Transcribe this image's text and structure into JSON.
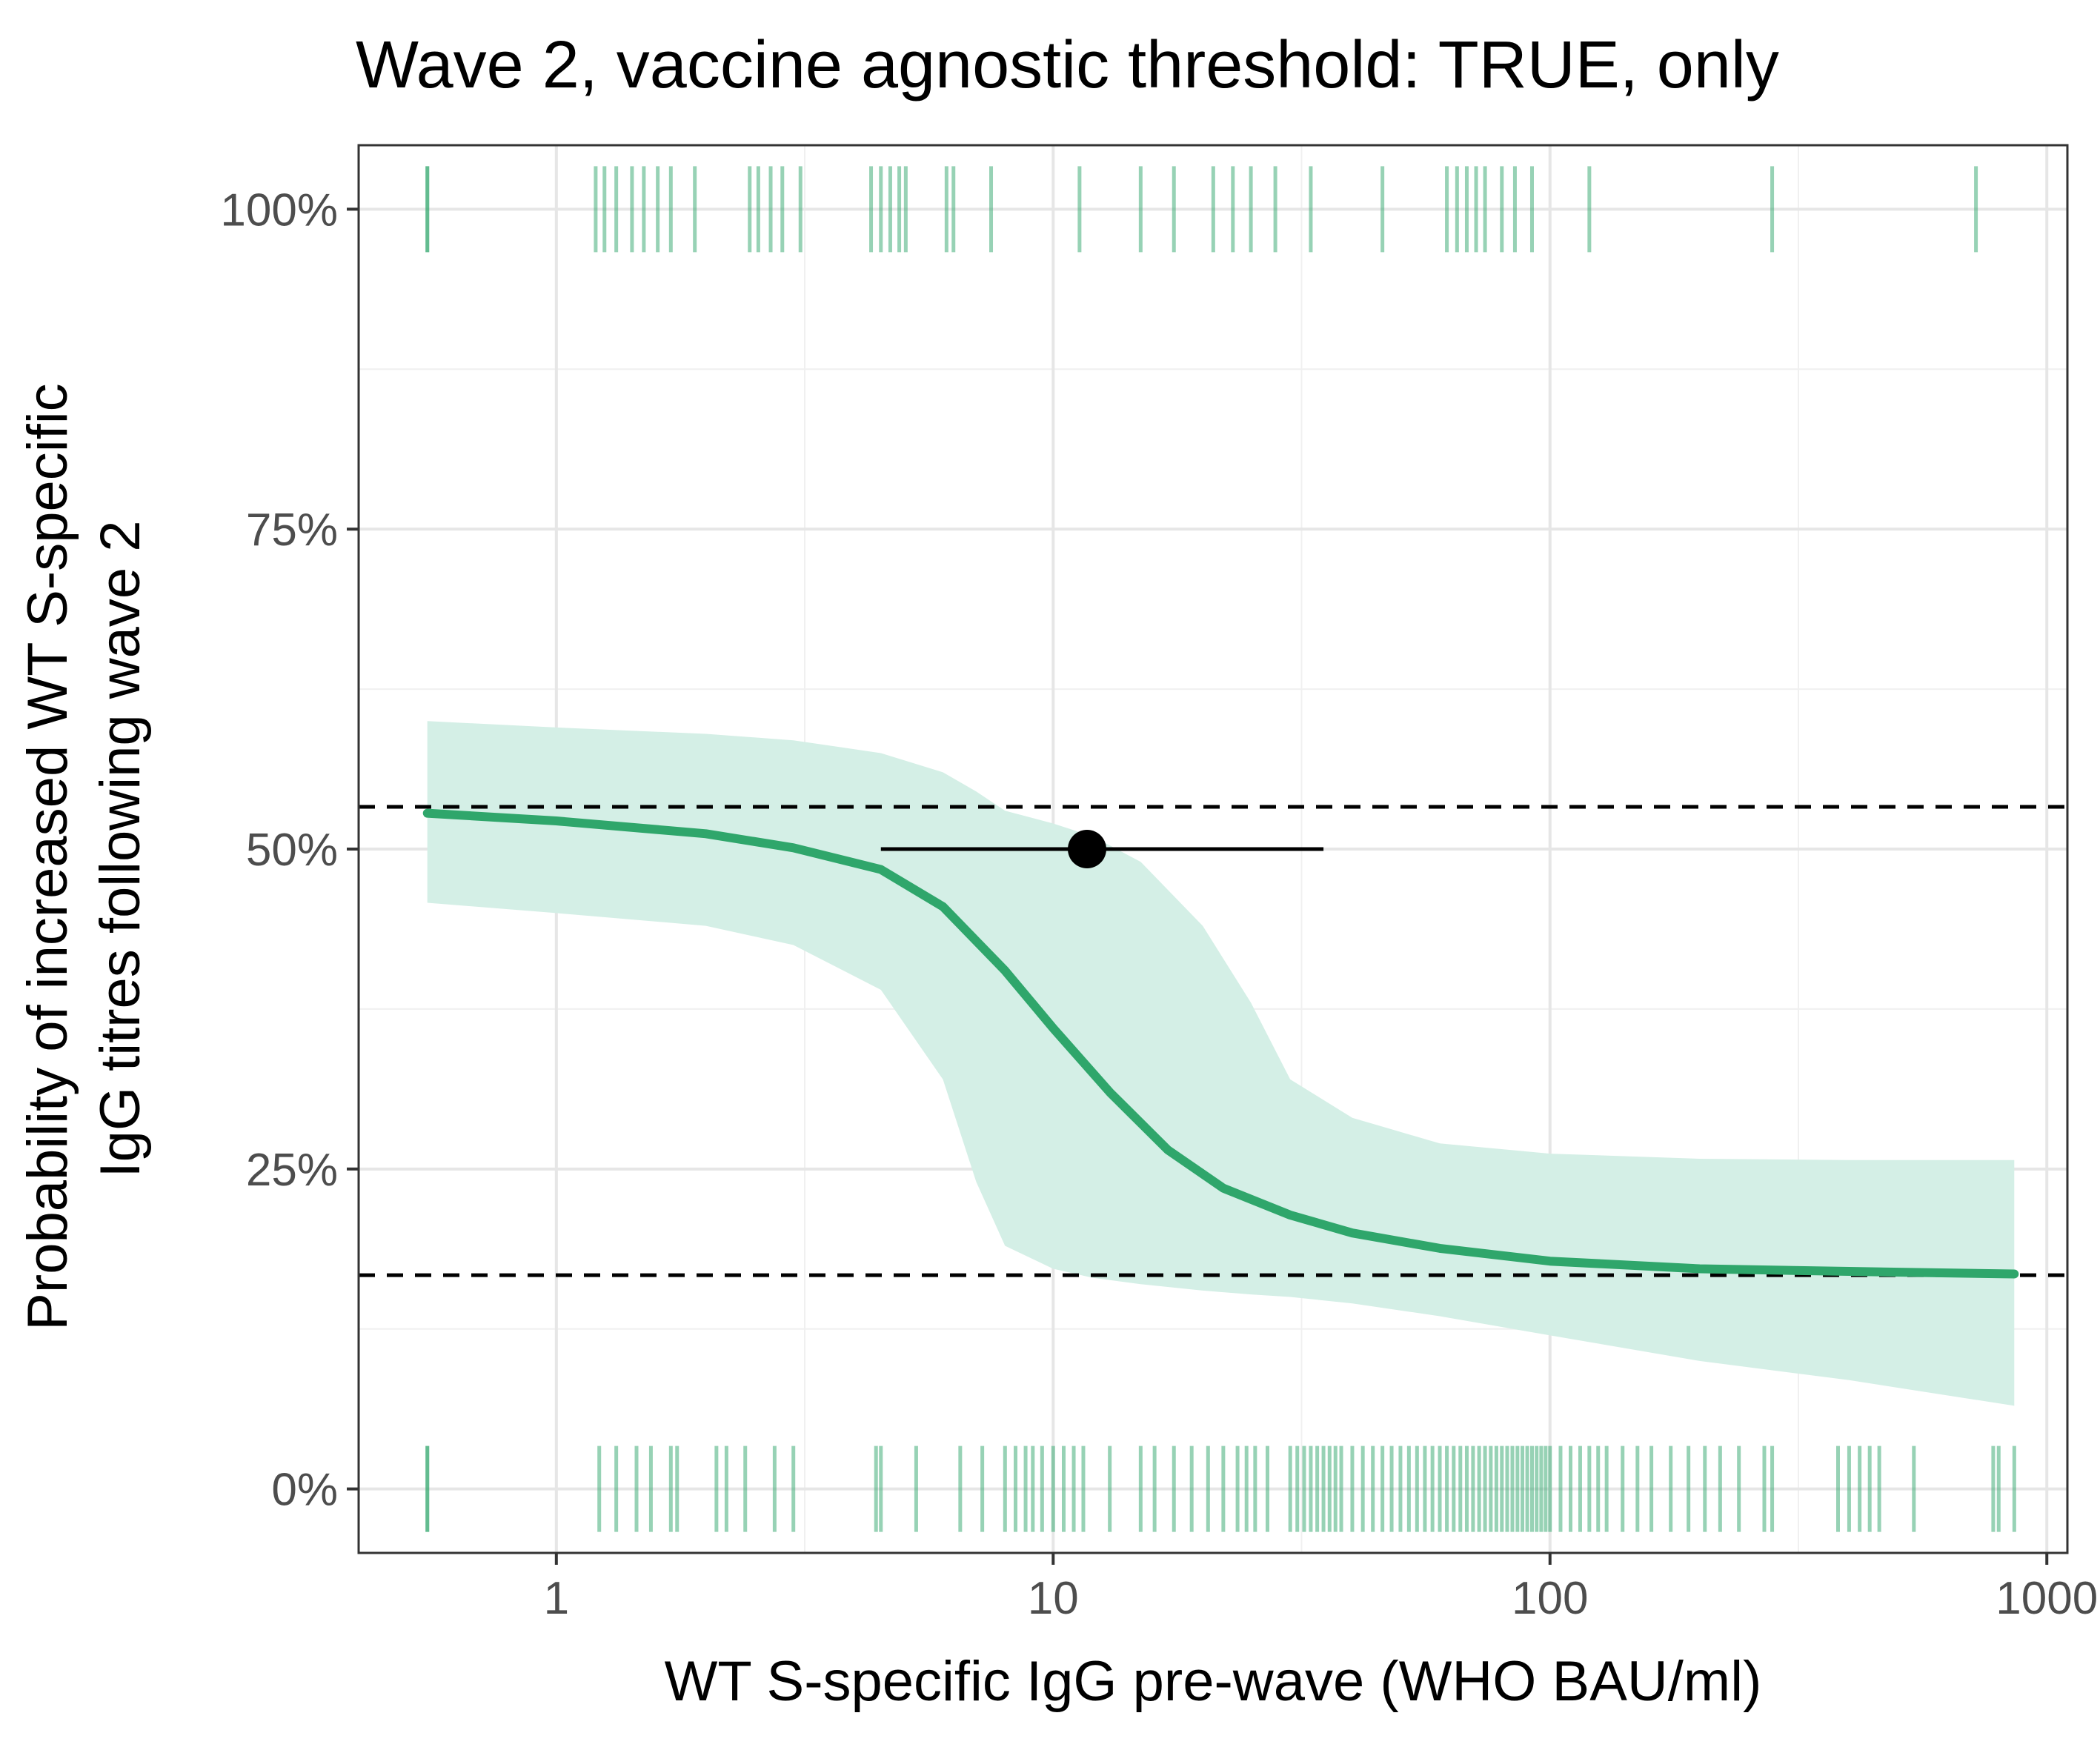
{
  "chart_data": {
    "type": "line",
    "title": "Wave 2, vaccine agnostic threshold: TRUE, only",
    "xlabel": "WT S-specific IgG pre-wave (WHO BAU/ml)",
    "ylabel_lines": [
      "Probability of increased WT S-specific",
      "IgG titres following wave 2"
    ],
    "x_scale": "log10",
    "xlim": [
      0.4,
      1100
    ],
    "ylim": [
      -0.05,
      1.05
    ],
    "x_ticks": [
      1,
      10,
      100,
      1000
    ],
    "x_tick_labels": [
      "1",
      "10",
      "100",
      "1000"
    ],
    "y_ticks": [
      0,
      0.25,
      0.5,
      0.75,
      1
    ],
    "y_tick_labels": [
      "0%",
      "25%",
      "50%",
      "75%",
      "100%"
    ],
    "grid": true,
    "colors": {
      "curve": "#2fa66b",
      "ribbon": "#d4efe6",
      "rug": "#2fa66b",
      "reference": "#000000"
    },
    "fitted_curve": {
      "x": [
        0.55,
        1,
        2,
        3,
        4.5,
        6,
        8,
        10,
        13,
        17,
        22,
        30,
        40,
        60,
        100,
        200,
        400,
        860
      ],
      "y": [
        0.528,
        0.522,
        0.512,
        0.501,
        0.484,
        0.455,
        0.405,
        0.36,
        0.31,
        0.265,
        0.235,
        0.214,
        0.2,
        0.188,
        0.178,
        0.172,
        0.17,
        0.168
      ]
    },
    "confidence_band": {
      "x": [
        0.55,
        1,
        2,
        3,
        4.5,
        6,
        7,
        8,
        10,
        12,
        15,
        20,
        25,
        30,
        40,
        60,
        100,
        200,
        400,
        860
      ],
      "lower": [
        0.458,
        0.45,
        0.44,
        0.425,
        0.39,
        0.32,
        0.24,
        0.19,
        0.172,
        0.165,
        0.16,
        0.155,
        0.152,
        0.15,
        0.145,
        0.135,
        0.12,
        0.1,
        0.085,
        0.065
      ],
      "upper": [
        0.6,
        0.595,
        0.59,
        0.585,
        0.575,
        0.56,
        0.545,
        0.53,
        0.52,
        0.51,
        0.49,
        0.44,
        0.38,
        0.32,
        0.29,
        0.27,
        0.262,
        0.258,
        0.257,
        0.257
      ]
    },
    "reference_lines_y": [
      0.533,
      0.167
    ],
    "point_estimate": {
      "x": 11.7,
      "y": 0.5,
      "xmin": 4.5,
      "xmax": 35
    },
    "rug_top_x": [
      0.55,
      0.55,
      1.2,
      1.25,
      1.32,
      1.42,
      1.5,
      1.6,
      1.7,
      1.9,
      2.45,
      2.55,
      2.7,
      2.85,
      3.1,
      4.3,
      4.5,
      4.7,
      4.9,
      5.05,
      6.1,
      6.3,
      7.5,
      11.3,
      15,
      17.5,
      21,
      23,
      25,
      28,
      33,
      46,
      62,
      65,
      68,
      71,
      74,
      80,
      85,
      92,
      120,
      280,
      720
    ],
    "rug_bottom_x": [
      0.55,
      0.55,
      1.22,
      1.32,
      1.45,
      1.55,
      1.7,
      1.75,
      2.1,
      2.2,
      2.4,
      2.75,
      3,
      4.4,
      4.5,
      5.3,
      6.5,
      7.2,
      8,
      8.4,
      8.8,
      9.1,
      9.5,
      10,
      10.5,
      11,
      11.5,
      13,
      15,
      16,
      17.5,
      19,
      20.5,
      22,
      23.5,
      24.5,
      25.5,
      27,
      30,
      31,
      32,
      33,
      34,
      35,
      36,
      37,
      38,
      40,
      42,
      44,
      46,
      48,
      50,
      52,
      54,
      56,
      58,
      60,
      62,
      64,
      66,
      68,
      70,
      72,
      74,
      76,
      78,
      80,
      82,
      84,
      86,
      88,
      90,
      92,
      94,
      96,
      98,
      100,
      105,
      110,
      115,
      120,
      125,
      130,
      140,
      150,
      160,
      175,
      190,
      205,
      220,
      240,
      270,
      280,
      380,
      400,
      420,
      440,
      460,
      540,
      780,
      800,
      860
    ]
  }
}
